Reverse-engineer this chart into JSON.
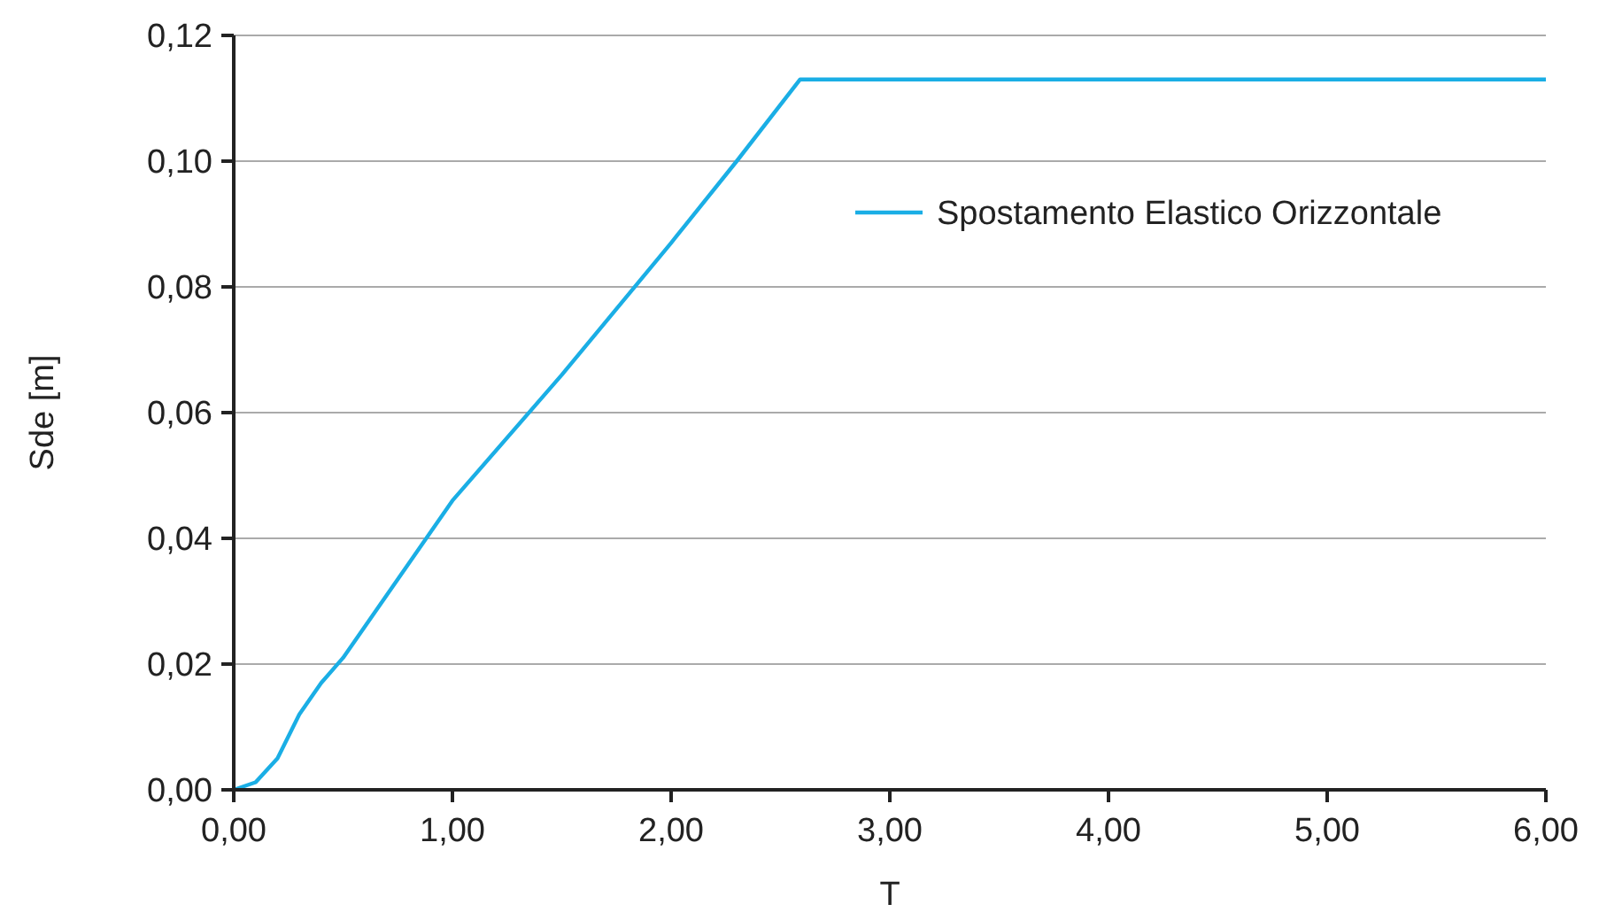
{
  "chart_data": {
    "type": "line",
    "xlabel": "T",
    "ylabel": "Sde [m]",
    "xlim": [
      0,
      6
    ],
    "xticks": [
      {
        "value": 0,
        "label": "0,00"
      },
      {
        "value": 1,
        "label": "1,00"
      },
      {
        "value": 2,
        "label": "2,00"
      },
      {
        "value": 3,
        "label": "3,00"
      },
      {
        "value": 4,
        "label": "4,00"
      },
      {
        "value": 5,
        "label": "5,00"
      },
      {
        "value": 6,
        "label": "6,00"
      }
    ],
    "ylim": [
      0,
      0.12
    ],
    "yticks": [
      {
        "value": 0,
        "label": "0,00"
      },
      {
        "value": 0.02,
        "label": "0,02"
      },
      {
        "value": 0.04,
        "label": "0,04"
      },
      {
        "value": 0.06,
        "label": "0,06"
      },
      {
        "value": 0.08,
        "label": "0,08"
      },
      {
        "value": 0.1,
        "label": "0,10"
      },
      {
        "value": 0.12,
        "label": "0,12"
      }
    ],
    "grid": "y",
    "legend": "top right",
    "series": [
      {
        "name": "Spostamento Elastico Orizzontale",
        "color": "#1aaee5",
        "x": [
          0,
          0.1,
          0.2,
          0.3,
          0.4,
          0.5,
          1.0,
          1.5,
          2.0,
          2.3,
          2.59,
          6.0
        ],
        "values": [
          0,
          0.0012,
          0.005,
          0.012,
          0.017,
          0.021,
          0.046,
          0.066,
          0.087,
          0.1,
          0.113,
          0.113
        ]
      }
    ]
  }
}
